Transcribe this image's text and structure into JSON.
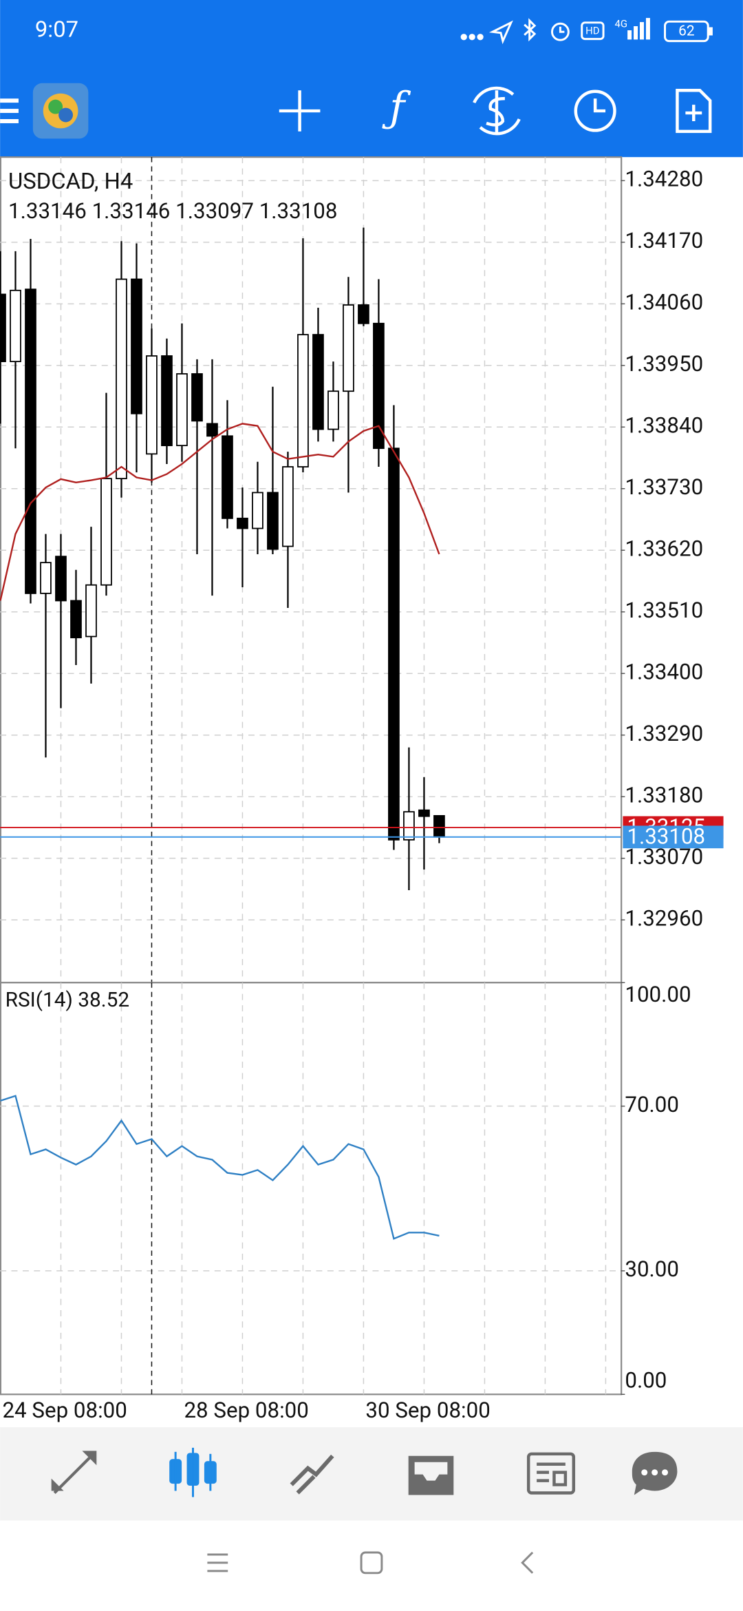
{
  "status_bar": {
    "time": "9:07",
    "hd": "HD",
    "network": "4G",
    "battery": "62"
  },
  "chart_data": [
    {
      "type": "candlestick",
      "title": "USDCAD, H4",
      "subtitle": "1.33146 1.33146 1.33097 1.33108",
      "open": [
        1.34077,
        1.33957,
        1.34086,
        1.33543,
        1.33609,
        1.3353,
        1.33466,
        1.33558,
        1.33748,
        1.34104,
        1.33792,
        1.33967,
        1.33807,
        1.33935,
        1.33846,
        1.33824,
        1.33677,
        1.33659,
        1.33723,
        1.33627,
        1.33769,
        1.34005,
        1.33836,
        1.33904,
        1.34058,
        1.34025,
        1.33802,
        1.33103,
        1.33156,
        1.33146
      ],
      "high": [
        1.34154,
        1.34154,
        1.34176,
        1.33649,
        1.33649,
        1.33585,
        1.33662,
        1.33901,
        1.34172,
        1.34168,
        1.34016,
        1.33998,
        1.34025,
        1.33961,
        1.33961,
        1.33888,
        1.33732,
        1.33778,
        1.33912,
        1.33796,
        1.34177,
        1.34053,
        1.33957,
        1.34108,
        1.34196,
        1.34104,
        1.33879,
        1.33268,
        1.33215,
        1.33146
      ],
      "low": [
        1.33846,
        1.33802,
        1.33525,
        1.3325,
        1.33338,
        1.33415,
        1.33382,
        1.33539,
        1.33714,
        1.33759,
        1.33741,
        1.33774,
        1.33778,
        1.33613,
        1.33539,
        1.33659,
        1.33554,
        1.33613,
        1.33613,
        1.33517,
        1.33759,
        1.33814,
        1.33814,
        1.33723,
        1.3402,
        1.33769,
        1.33085,
        1.33013,
        1.3305,
        1.33097
      ],
      "close": [
        1.33957,
        1.34084,
        1.33543,
        1.33598,
        1.3353,
        1.33464,
        1.33558,
        1.33748,
        1.34104,
        1.33864,
        1.33967,
        1.33807,
        1.33935,
        1.33851,
        1.33824,
        1.33677,
        1.33659,
        1.33723,
        1.33622,
        1.33769,
        1.34005,
        1.33836,
        1.33904,
        1.34058,
        1.34025,
        1.33802,
        1.33103,
        1.33153,
        1.33145,
        1.33108
      ],
      "series": [
        {
          "color": "#b0201f",
          "values": [
            1.3353,
            1.33649,
            1.33704,
            1.33732,
            1.33747,
            1.33741,
            1.33745,
            1.3375,
            1.33769,
            1.3375,
            1.33745,
            1.33756,
            1.33774,
            1.33796,
            1.33818,
            1.33836,
            1.33846,
            1.33842,
            1.33796,
            1.33783,
            1.33787,
            1.33791,
            1.33787,
            1.33814,
            1.33833,
            1.33842,
            1.33796,
            1.3375,
            1.33686,
            1.33613
          ]
        }
      ],
      "price_lines": [
        {
          "value": 1.33125,
          "color": "#d3141b"
        },
        {
          "value": 1.33108,
          "color": "#3d96e6"
        }
      ],
      "ylim": [
        1.32848,
        1.34322
      ],
      "yticks": [
        {
          "value": 1.3428,
          "label": "1.34280"
        },
        {
          "value": 1.3417,
          "label": "1.34170"
        },
        {
          "value": 1.3406,
          "label": "1.34060"
        },
        {
          "value": 1.3395,
          "label": "1.33950"
        },
        {
          "value": 1.3384,
          "label": "1.33840"
        },
        {
          "value": 1.3373,
          "label": "1.33730"
        },
        {
          "value": 1.3362,
          "label": "1.33620"
        },
        {
          "value": 1.3351,
          "label": "1.33510"
        },
        {
          "value": 1.334,
          "label": "1.33400"
        },
        {
          "value": 1.3329,
          "label": "1.33290"
        },
        {
          "value": 1.3318,
          "label": "1.33180"
        },
        {
          "value": 1.3307,
          "label": "1.33070"
        },
        {
          "value": 1.3296,
          "label": "1.32960"
        }
      ],
      "grid": true
    },
    {
      "type": "line",
      "title": "RSI(14) 38.52",
      "categories": [
        "24 Sep 08:00",
        null,
        null,
        null,
        null,
        null,
        null,
        null,
        null,
        null,
        null,
        null,
        "28 Sep 08:00",
        null,
        null,
        null,
        null,
        null,
        null,
        null,
        null,
        null,
        null,
        null,
        "30 Sep 08:00",
        null,
        null,
        null,
        null,
        null
      ],
      "series": [
        {
          "color": "#2f80c4",
          "values": [
            71.3,
            72.5,
            58.3,
            59.5,
            57.5,
            55.8,
            57.8,
            61.5,
            66.5,
            60.8,
            62,
            57.8,
            60.3,
            57.8,
            57,
            53.8,
            53.3,
            54.5,
            52,
            55.8,
            60.3,
            55.8,
            57,
            60.8,
            59.5,
            52.8,
            37.8,
            39.3,
            39.3,
            38.52
          ]
        }
      ],
      "ylim": [
        0,
        100
      ],
      "yticks": [
        {
          "value": 100,
          "label": "100.00"
        },
        {
          "value": 70,
          "label": "70.00"
        },
        {
          "value": 30,
          "label": "30.00"
        },
        {
          "value": 0,
          "label": "0.00"
        }
      ],
      "grid": true
    }
  ]
}
